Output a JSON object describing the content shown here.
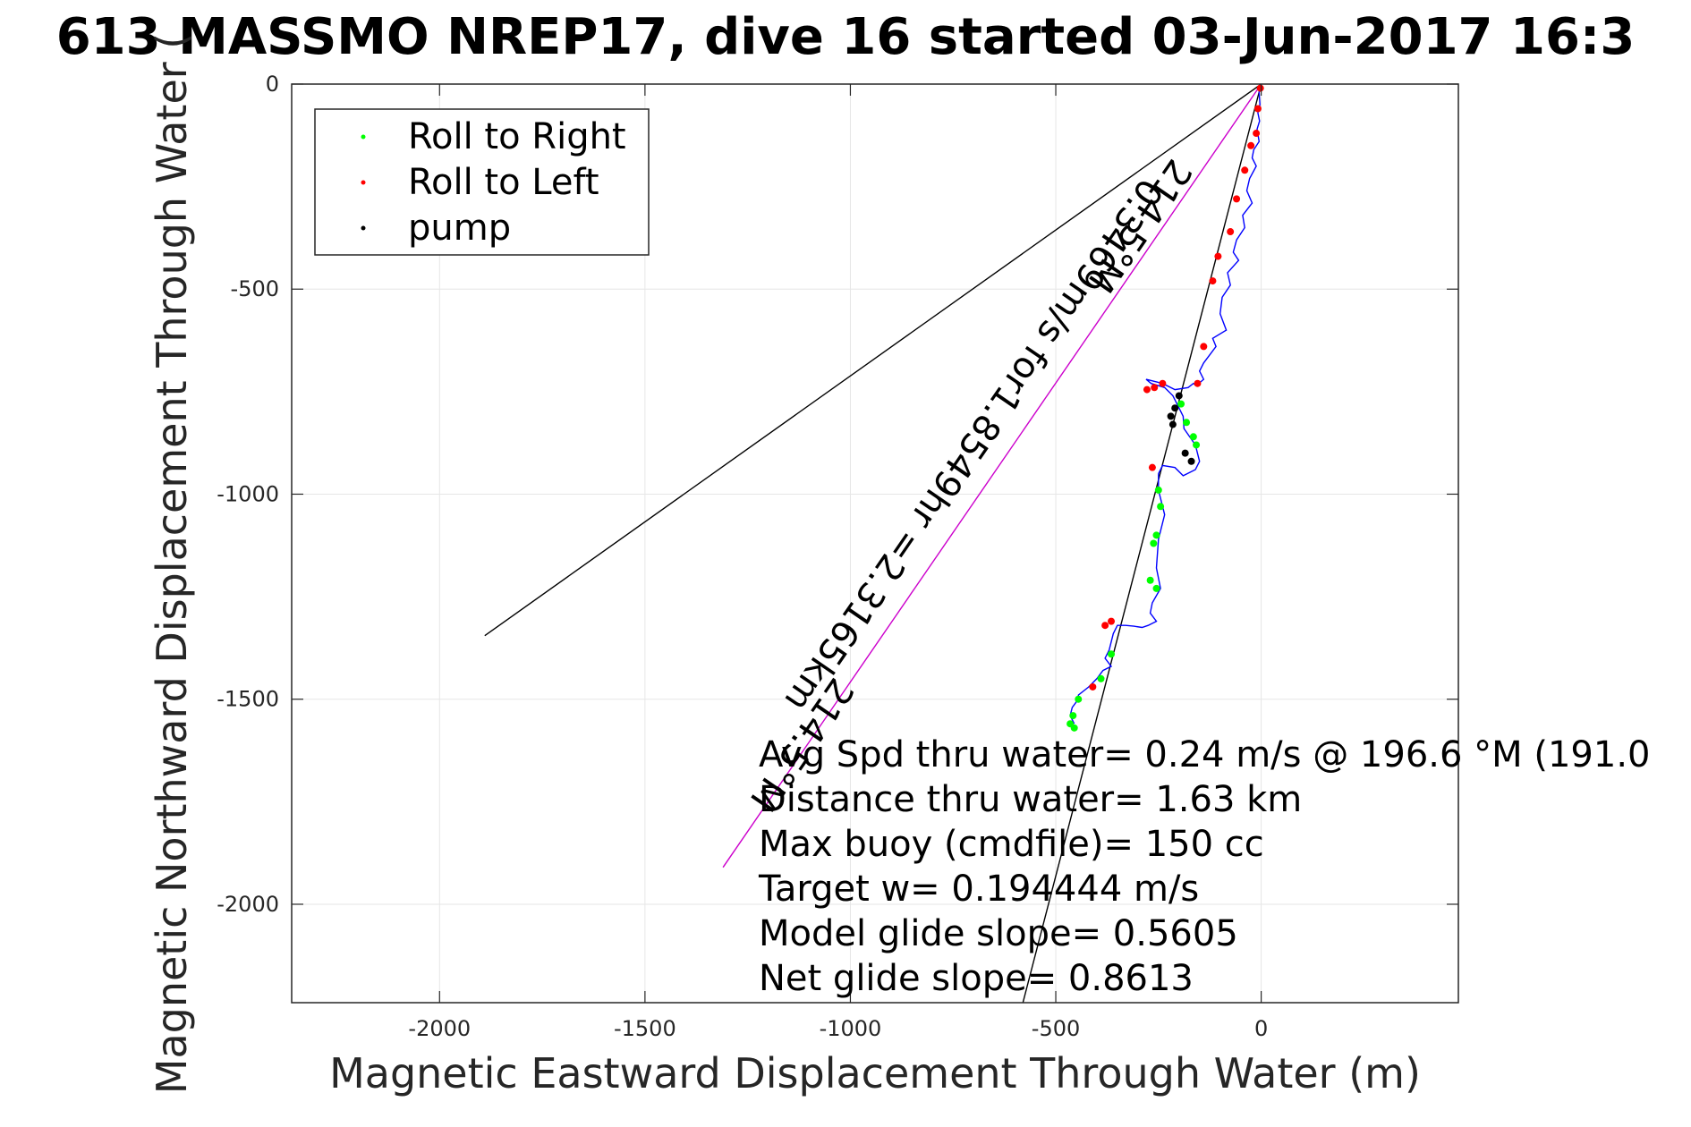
{
  "chart_data": {
    "type": "line",
    "title": "613 MASSMO NREP17, dive 16 started 03-Jun-2017 16:3",
    "xlabel": "Magnetic Eastward Displacement Through Water (m)",
    "ylabel": "Magnetic Northward Displacement Through Water (",
    "xlim": [
      -2360,
      480
    ],
    "ylim": [
      -2240,
      0
    ],
    "x_ticks": [
      -2000,
      -1500,
      -1000,
      -500,
      0
    ],
    "y_ticks": [
      0,
      -500,
      -1000,
      -1500,
      -2000
    ],
    "x_tick_labels": [
      "-2000",
      "-1500",
      "-1000",
      "-500",
      "0"
    ],
    "y_tick_labels": [
      "0",
      "-500",
      "-1000",
      "-1500",
      "-2000"
    ],
    "grid": true,
    "legend_position": "top-left",
    "legend": [
      {
        "label": "Roll to Right",
        "color": "#00ff00"
      },
      {
        "label": "Roll to Left",
        "color": "#ff0000"
      },
      {
        "label": "pump",
        "color": "#000000"
      }
    ],
    "reference_lines": [
      {
        "color": "#000000",
        "x": [
          0,
          -1890
        ],
        "y": [
          0,
          -1345
        ]
      },
      {
        "color": "#cc00cc",
        "x": [
          0,
          -1310
        ],
        "y": [
          0,
          -1910
        ]
      },
      {
        "color": "#000000",
        "x": [
          0,
          -580
        ],
        "y": [
          0,
          -2240
        ]
      }
    ],
    "track": {
      "color": "#0000ff",
      "x": [
        0,
        -5,
        -3,
        -8,
        -4,
        -10,
        -5,
        -18,
        -22,
        -12,
        -28,
        -35,
        -22,
        -45,
        -40,
        -60,
        -68,
        -55,
        -82,
        -75,
        -95,
        -100,
        -85,
        -118,
        -110,
        -140,
        -150,
        -140,
        -158,
        -165,
        -178,
        -210,
        -240,
        -280,
        -268,
        -235,
        -215,
        -200,
        -190,
        -188,
        -160,
        -150,
        -160,
        -190,
        -210,
        -240,
        -250,
        -250,
        -235,
        -250,
        -255,
        -245,
        -265,
        -270,
        -255,
        -275,
        -290,
        -310,
        -330,
        -350,
        -360,
        -370,
        -380,
        -365,
        -385,
        -400,
        -420,
        -445,
        -445,
        -460,
        -465,
        -455
      ],
      "y": [
        0,
        -20,
        -50,
        -70,
        -90,
        -110,
        -140,
        -160,
        -180,
        -200,
        -230,
        -260,
        -290,
        -320,
        -350,
        -380,
        -410,
        -430,
        -460,
        -490,
        -520,
        -560,
        -600,
        -620,
        -640,
        -680,
        -700,
        -720,
        -735,
        -730,
        -740,
        -745,
        -730,
        -720,
        -730,
        -740,
        -760,
        -790,
        -810,
        -840,
        -880,
        -920,
        -940,
        -955,
        -935,
        -930,
        -950,
        -990,
        -1050,
        -1110,
        -1180,
        -1230,
        -1265,
        -1290,
        -1310,
        -1320,
        -1325,
        -1322,
        -1320,
        -1320,
        -1340,
        -1380,
        -1400,
        -1420,
        -1430,
        -1450,
        -1470,
        -1490,
        -1500,
        -1520,
        -1540,
        -1560
      ]
    },
    "roll_right_x": [
      -195,
      -182,
      -165,
      -158,
      -250,
      -245,
      -255,
      -262,
      -270,
      -255,
      -365,
      -390,
      -445,
      -458,
      -465,
      -455
    ],
    "roll_right_y": [
      -780,
      -825,
      -860,
      -880,
      -990,
      -1030,
      -1100,
      -1120,
      -1210,
      -1230,
      -1390,
      -1450,
      -1500,
      -1540,
      -1560,
      -1570
    ],
    "roll_left_x": [
      -2,
      -8,
      -12,
      -25,
      -40,
      -60,
      -75,
      -105,
      -118,
      -140,
      -155,
      -240,
      -260,
      -278,
      -265,
      -365,
      -380,
      -410
    ],
    "roll_left_y": [
      -10,
      -60,
      -120,
      -150,
      -210,
      -280,
      -360,
      -420,
      -480,
      -640,
      -730,
      -730,
      -740,
      -745,
      -935,
      -1310,
      -1320,
      -1470
    ],
    "pump_x": [
      -200,
      -210,
      -220,
      -215,
      -185,
      -170
    ],
    "pump_y": [
      -760,
      -790,
      -810,
      -830,
      -900,
      -920
    ],
    "rotated_labels": [
      {
        "text": "0.3469m/s for1.8549hr =2.3165km",
        "series": "magenta-line"
      },
      {
        "text": "214.5°M",
        "series": "magenta-line-top"
      },
      {
        "text": "214.5°M",
        "series": "magenta-line-bottom"
      }
    ],
    "annotations": [
      "Avg Spd thru water=  0.24 m/s @ 196.6 °M (191.0",
      "Distance thru water=  1.63 km",
      "Max buoy (cmdfile)= 150 cc",
      "Target w= 0.194444 m/s",
      "Model glide slope= 0.5605",
      "Net glide slope= 0.8613"
    ]
  }
}
